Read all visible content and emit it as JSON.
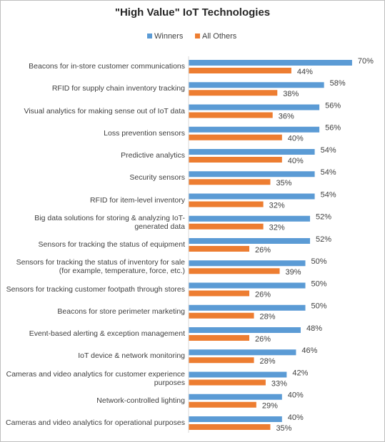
{
  "chart_data": {
    "type": "bar",
    "orientation": "horizontal",
    "title": "\"High Value\" IoT Technologies",
    "categories": [
      "Beacons for in-store customer communications",
      "RFID for supply chain inventory tracking",
      "Visual analytics for making sense out of IoT data",
      "Loss prevention sensors",
      "Predictive analytics",
      "Security sensors",
      "RFID for item-level inventory",
      "Big data solutions for storing & analyzing IoT-generated data",
      "Sensors for tracking the status of equipment",
      "Sensors for tracking the status of inventory for sale (for example, temperature, force, etc.)",
      "Sensors for tracking customer footpath through stores",
      "Beacons for store perimeter marketing",
      "Event-based alerting & exception management",
      "IoT device & network monitoring",
      "Cameras and video analytics for customer experience purposes",
      "Network-controlled lighting",
      "Cameras and video analytics for operational purposes"
    ],
    "series": [
      {
        "name": "Winners",
        "color": "#5b9bd5",
        "values": [
          70,
          58,
          56,
          56,
          54,
          54,
          54,
          52,
          52,
          50,
          50,
          50,
          48,
          46,
          42,
          40,
          40
        ],
        "value_labels": [
          "70%",
          "58%",
          "56%",
          "56%",
          "54%",
          "54%",
          "54%",
          "52%",
          "52%",
          "50%",
          "50%",
          "50%",
          "48%",
          "46%",
          "42%",
          "40%",
          "40%"
        ]
      },
      {
        "name": "All Others",
        "color": "#ed7d31",
        "values": [
          44,
          38,
          36,
          40,
          40,
          35,
          32,
          32,
          26,
          39,
          26,
          28,
          26,
          28,
          33,
          29,
          35
        ],
        "value_labels": [
          "44%",
          "38%",
          "36%",
          "40%",
          "40%",
          "35%",
          "32%",
          "32%",
          "26%",
          "39%",
          "26%",
          "28%",
          "26%",
          "28%",
          "33%",
          "29%",
          "35%"
        ]
      }
    ],
    "legend": "top"
  }
}
